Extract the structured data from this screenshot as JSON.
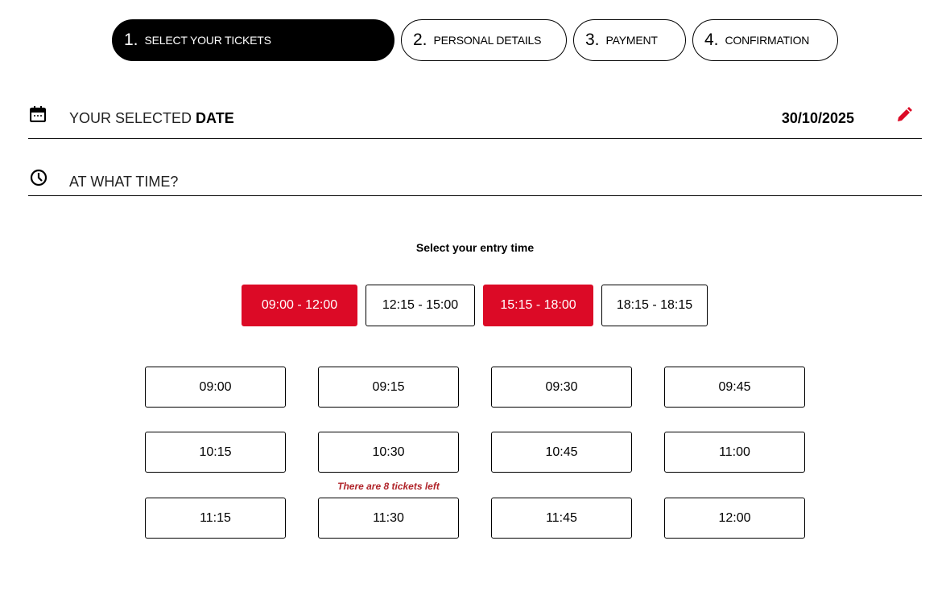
{
  "steps": [
    {
      "num": "1.",
      "label": "SELECT YOUR TICKETS",
      "active": true
    },
    {
      "num": "2.",
      "label": "PERSONAL DETAILS",
      "active": false
    },
    {
      "num": "3.",
      "label": "PAYMENT",
      "active": false
    },
    {
      "num": "4.",
      "label": "CONFIRMATION",
      "active": false
    }
  ],
  "date_row": {
    "label_prefix": "YOUR SELECTED ",
    "label_bold": "DATE",
    "value": "30/10/2025",
    "icon": "calendar-icon",
    "edit_icon": "pencil-icon"
  },
  "time_row": {
    "label": "AT WHAT TIME?",
    "icon": "clock-icon"
  },
  "entry": {
    "title": "Select your entry time",
    "ranges": [
      {
        "label": "09:00 - 12:00",
        "selected": true
      },
      {
        "label": "12:15 - 15:00",
        "selected": false
      },
      {
        "label": "15:15 - 18:00",
        "selected": true
      },
      {
        "label": "18:15 - 18:15",
        "selected": false
      }
    ],
    "slots": [
      "09:00",
      "09:15",
      "09:30",
      "09:45",
      "10:15",
      "10:30",
      "10:45",
      "11:00",
      "11:15",
      "11:30",
      "11:45",
      "12:00"
    ],
    "availability_note": "There are 8 tickets left"
  },
  "colors": {
    "accent": "#dc0a26",
    "note": "#b0242a"
  }
}
